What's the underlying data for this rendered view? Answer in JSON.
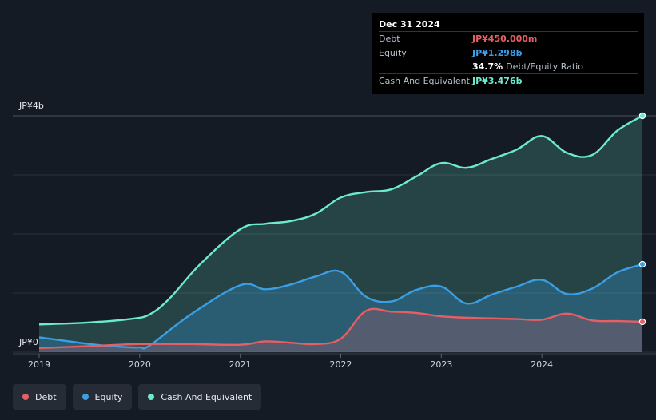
{
  "tooltip": {
    "date": "Dec 31 2024",
    "debt_label": "Debt",
    "debt_value": "JP¥450.000m",
    "equity_label": "Equity",
    "equity_value": "JP¥1.298b",
    "ratio_value": "34.7%",
    "ratio_label": "Debt/Equity Ratio",
    "cash_label": "Cash And Equivalent",
    "cash_value": "JP¥3.476b"
  },
  "colors": {
    "debt": "#e55f64",
    "equity": "#3a9fe6",
    "cash": "#6cead0"
  },
  "legend": [
    {
      "label": "Debt",
      "key": "debt"
    },
    {
      "label": "Equity",
      "key": "equity"
    },
    {
      "label": "Cash And Equivalent",
      "key": "cash"
    }
  ],
  "chart_data": {
    "type": "area",
    "title": "",
    "xlabel": "",
    "ylabel": "",
    "ylim": [
      0,
      3.5
    ],
    "xlim": [
      2019.0,
      2025.0
    ],
    "y_tick_labels": [
      {
        "value": 3.5,
        "label": "JP¥4b"
      },
      {
        "value": 0,
        "label": "JP¥0"
      }
    ],
    "x_ticks": [
      {
        "value": 2019,
        "label": "2019"
      },
      {
        "value": 2020,
        "label": "2020"
      },
      {
        "value": 2021,
        "label": "2021"
      },
      {
        "value": 2022,
        "label": "2022"
      },
      {
        "value": 2023,
        "label": "2023"
      },
      {
        "value": 2024,
        "label": "2024"
      }
    ],
    "series": [
      {
        "name": "Cash And Equivalent",
        "key": "cash",
        "points": [
          [
            2019.0,
            0.41
          ],
          [
            2019.5,
            0.44
          ],
          [
            2019.9,
            0.49
          ],
          [
            2020.1,
            0.56
          ],
          [
            2020.3,
            0.8
          ],
          [
            2020.6,
            1.3
          ],
          [
            2021.0,
            1.82
          ],
          [
            2021.25,
            1.9
          ],
          [
            2021.5,
            1.94
          ],
          [
            2021.75,
            2.05
          ],
          [
            2022.0,
            2.29
          ],
          [
            2022.25,
            2.37
          ],
          [
            2022.5,
            2.41
          ],
          [
            2022.75,
            2.6
          ],
          [
            2023.0,
            2.8
          ],
          [
            2023.25,
            2.73
          ],
          [
            2023.5,
            2.86
          ],
          [
            2023.75,
            3.0
          ],
          [
            2024.0,
            3.2
          ],
          [
            2024.25,
            2.95
          ],
          [
            2024.5,
            2.92
          ],
          [
            2024.75,
            3.28
          ],
          [
            2025.0,
            3.5
          ]
        ]
      },
      {
        "name": "Equity",
        "key": "equity",
        "points": [
          [
            2019.0,
            0.22
          ],
          [
            2019.5,
            0.12
          ],
          [
            2019.8,
            0.08
          ],
          [
            2020.0,
            0.07
          ],
          [
            2020.1,
            0.1
          ],
          [
            2020.5,
            0.55
          ],
          [
            2021.0,
            0.99
          ],
          [
            2021.25,
            0.93
          ],
          [
            2021.5,
            1.0
          ],
          [
            2021.75,
            1.12
          ],
          [
            2022.0,
            1.19
          ],
          [
            2022.25,
            0.82
          ],
          [
            2022.5,
            0.75
          ],
          [
            2022.75,
            0.92
          ],
          [
            2023.0,
            0.97
          ],
          [
            2023.25,
            0.72
          ],
          [
            2023.5,
            0.85
          ],
          [
            2023.75,
            0.97
          ],
          [
            2024.0,
            1.07
          ],
          [
            2024.25,
            0.86
          ],
          [
            2024.5,
            0.94
          ],
          [
            2024.75,
            1.18
          ],
          [
            2025.0,
            1.3
          ]
        ]
      },
      {
        "name": "Debt",
        "key": "debt",
        "points": [
          [
            2019.0,
            0.06
          ],
          [
            2019.5,
            0.09
          ],
          [
            2020.0,
            0.12
          ],
          [
            2020.5,
            0.12
          ],
          [
            2021.0,
            0.11
          ],
          [
            2021.25,
            0.16
          ],
          [
            2021.5,
            0.14
          ],
          [
            2021.75,
            0.12
          ],
          [
            2022.0,
            0.2
          ],
          [
            2022.25,
            0.61
          ],
          [
            2022.5,
            0.6
          ],
          [
            2022.75,
            0.58
          ],
          [
            2023.0,
            0.53
          ],
          [
            2023.25,
            0.51
          ],
          [
            2023.5,
            0.5
          ],
          [
            2023.75,
            0.49
          ],
          [
            2024.0,
            0.48
          ],
          [
            2024.25,
            0.57
          ],
          [
            2024.5,
            0.47
          ],
          [
            2024.75,
            0.46
          ],
          [
            2025.0,
            0.45
          ]
        ]
      }
    ]
  }
}
